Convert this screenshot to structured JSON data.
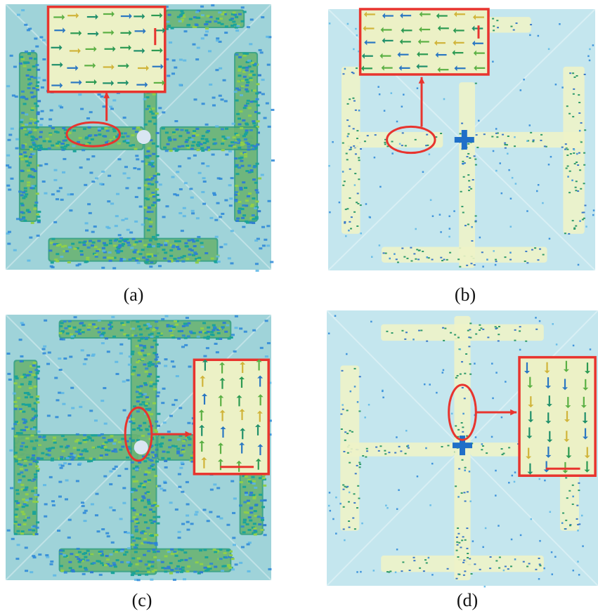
{
  "figure": {
    "panels": [
      {
        "id": "a",
        "label": "(a)",
        "style": "dense",
        "inset": "top",
        "arrow_direction": "right"
      },
      {
        "id": "b",
        "label": "(b)",
        "style": "sparse",
        "inset": "top",
        "arrow_direction": "left"
      },
      {
        "id": "c",
        "label": "(c)",
        "style": "dense",
        "inset": "right",
        "arrow_direction": "up"
      },
      {
        "id": "d",
        "label": "(d)",
        "style": "sparse",
        "inset": "right",
        "arrow_direction": "down"
      }
    ],
    "colors": {
      "background_dense": "#9fd3d9",
      "background_sparse": "#c4e6ee",
      "strip_green": "#2f9c7a",
      "strip_yellow": "#c9d766",
      "strip_pale": "#eef3c8",
      "dot_blue": "#2a86d8",
      "highlight_red": "#e8342e",
      "inset_fill": "#ecf1c6",
      "center_blue": "#1f6fc8"
    }
  }
}
